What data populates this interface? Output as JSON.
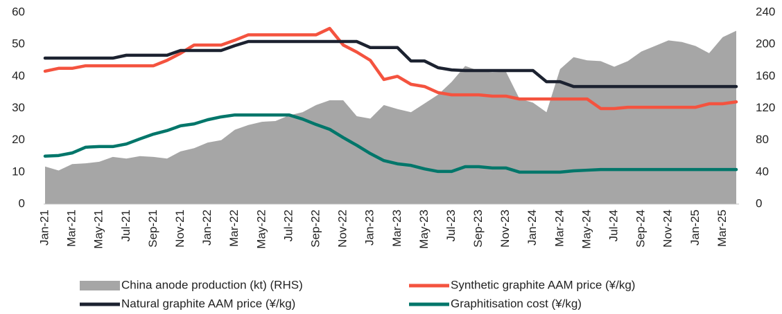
{
  "chart_data": {
    "type": "line",
    "categories": [
      "Jan-21",
      null,
      "Mar-21",
      null,
      "May-21",
      null,
      "Jul-21",
      null,
      "Sep-21",
      null,
      "Nov-21",
      null,
      "Jan-22",
      null,
      "Mar-22",
      null,
      "May-22",
      null,
      "Jul-22",
      null,
      "Sep-22",
      null,
      "Nov-22",
      null,
      "Jan-23",
      null,
      "Mar-23",
      null,
      "May-23",
      null,
      "Jul-23",
      null,
      "Sep-23",
      null,
      "Nov-23",
      null,
      "Jan-24",
      null,
      "Mar-24",
      null,
      "May-24",
      null,
      "Jul-24",
      null,
      "Sep-24",
      null,
      "Nov-24",
      null,
      "Jan-25",
      null,
      "Mar-25",
      null
    ],
    "series": [
      {
        "name": "China anode production (kt) (RHS)",
        "type": "area",
        "axis": "y2",
        "color": "#a6a6a6",
        "values": [
          47,
          42,
          50,
          51,
          53,
          59,
          57,
          60,
          59,
          57,
          66,
          70,
          77,
          80,
          93,
          99,
          103,
          104,
          111,
          115,
          124,
          130,
          130,
          110,
          107,
          124,
          119,
          115,
          126,
          137,
          153,
          173,
          167,
          165,
          166,
          132,
          127,
          115,
          169,
          184,
          180,
          179,
          172,
          179,
          191,
          198,
          205,
          203,
          198,
          189,
          209,
          217
        ]
      },
      {
        "name": "Synthetic graphite AAM price (¥/kg)",
        "type": "line",
        "color": "#f4533f",
        "values": [
          41.6,
          42.5,
          42.5,
          43.3,
          43.3,
          43.3,
          43.3,
          43.3,
          43.3,
          45,
          47.2,
          49.8,
          49.8,
          49.8,
          51.3,
          53,
          53,
          53,
          53,
          53,
          53,
          55,
          49.8,
          47.6,
          45,
          39,
          40,
          37.5,
          36.8,
          34.9,
          34.2,
          34.2,
          34.2,
          33.8,
          33.8,
          32.9,
          32.9,
          32.9,
          32.9,
          32.9,
          32.9,
          29.9,
          29.9,
          30.3,
          30.3,
          30.3,
          30.3,
          30.3,
          30.3,
          31.4,
          31.4,
          32
        ]
      },
      {
        "name": "Natural graphite AAM price (¥/kg)",
        "type": "line",
        "color": "#1c2230",
        "values": [
          45.7,
          45.7,
          45.7,
          45.7,
          45.7,
          45.7,
          46.6,
          46.6,
          46.6,
          46.6,
          48.1,
          48.1,
          48.1,
          48.1,
          49.6,
          50.9,
          50.9,
          50.9,
          50.9,
          50.9,
          50.9,
          50.9,
          50.9,
          50.9,
          49,
          49,
          49,
          44.8,
          44.8,
          42.7,
          42,
          41.8,
          41.8,
          41.8,
          41.8,
          41.8,
          41.8,
          38.3,
          38.3,
          36.8,
          36.8,
          36.8,
          36.8,
          36.8,
          36.8,
          36.8,
          36.8,
          36.8,
          36.8,
          36.8,
          36.8,
          36.8
        ]
      },
      {
        "name": "Graphitisation cost (¥/kg)",
        "type": "line",
        "color": "#00766a",
        "values": [
          15,
          15.2,
          16,
          17.8,
          18,
          18,
          18.8,
          20.4,
          21.9,
          23,
          24.5,
          25.1,
          26.4,
          27.3,
          27.9,
          27.9,
          27.9,
          27.9,
          27.9,
          26.6,
          24.9,
          23.4,
          20.8,
          18.4,
          15.8,
          13.6,
          12.6,
          12.1,
          11,
          10.2,
          10.2,
          11.7,
          11.7,
          11.3,
          11.3,
          10,
          10,
          10,
          10,
          10.4,
          10.6,
          10.8,
          10.8,
          10.8,
          10.8,
          10.8,
          10.8,
          10.8,
          10.8,
          10.8,
          10.8,
          10.8
        ]
      }
    ],
    "ylim": [
      0,
      60
    ],
    "yticks": [
      0,
      10,
      20,
      30,
      40,
      50,
      60
    ],
    "y2lim": [
      0,
      240
    ],
    "y2ticks": [
      0,
      40,
      80,
      120,
      160,
      200,
      240
    ],
    "grid": false,
    "legend": "bottom"
  }
}
